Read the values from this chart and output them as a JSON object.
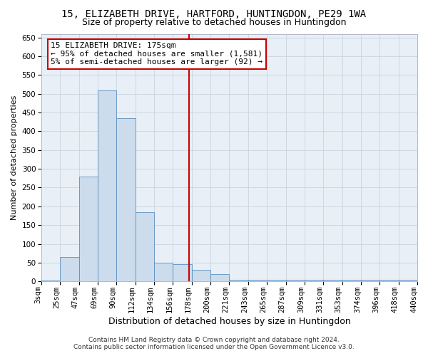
{
  "title1": "15, ELIZABETH DRIVE, HARTFORD, HUNTINGDON, PE29 1WA",
  "title2": "Size of property relative to detached houses in Huntingdon",
  "xlabel": "Distribution of detached houses by size in Huntingdon",
  "ylabel": "Number of detached properties",
  "categories": [
    "3sqm",
    "25sqm",
    "47sqm",
    "69sqm",
    "90sqm",
    "112sqm",
    "134sqm",
    "156sqm",
    "178sqm",
    "200sqm",
    "221sqm",
    "243sqm",
    "265sqm",
    "287sqm",
    "309sqm",
    "331sqm",
    "353sqm",
    "374sqm",
    "396sqm",
    "418sqm",
    "440sqm"
  ],
  "bar_heights": [
    3,
    65,
    280,
    510,
    435,
    185,
    50,
    45,
    30,
    20,
    5,
    5,
    5,
    5,
    5,
    5,
    5,
    5,
    5,
    5
  ],
  "bar_color": "#ccdcec",
  "bar_edge_color": "#5a8fc0",
  "annotation_title": "15 ELIZABETH DRIVE: 175sqm",
  "annotation_line1": "← 95% of detached houses are smaller (1,581)",
  "annotation_line2": "5% of semi-detached houses are larger (92) →",
  "annotation_box_color": "#ffffff",
  "annotation_box_edge": "#cc0000",
  "vline_color": "#cc0000",
  "grid_color": "#c8d4e0",
  "bg_color": "#e8eff6",
  "ylim": [
    0,
    660
  ],
  "yticks": [
    0,
    50,
    100,
    150,
    200,
    250,
    300,
    350,
    400,
    450,
    500,
    550,
    600,
    650
  ],
  "footer1": "Contains HM Land Registry data © Crown copyright and database right 2024.",
  "footer2": "Contains public sector information licensed under the Open Government Licence v3.0.",
  "title1_fontsize": 10,
  "title2_fontsize": 9,
  "xlabel_fontsize": 9,
  "ylabel_fontsize": 8,
  "tick_fontsize": 7.5,
  "annot_fontsize": 8,
  "footer_fontsize": 6.5
}
